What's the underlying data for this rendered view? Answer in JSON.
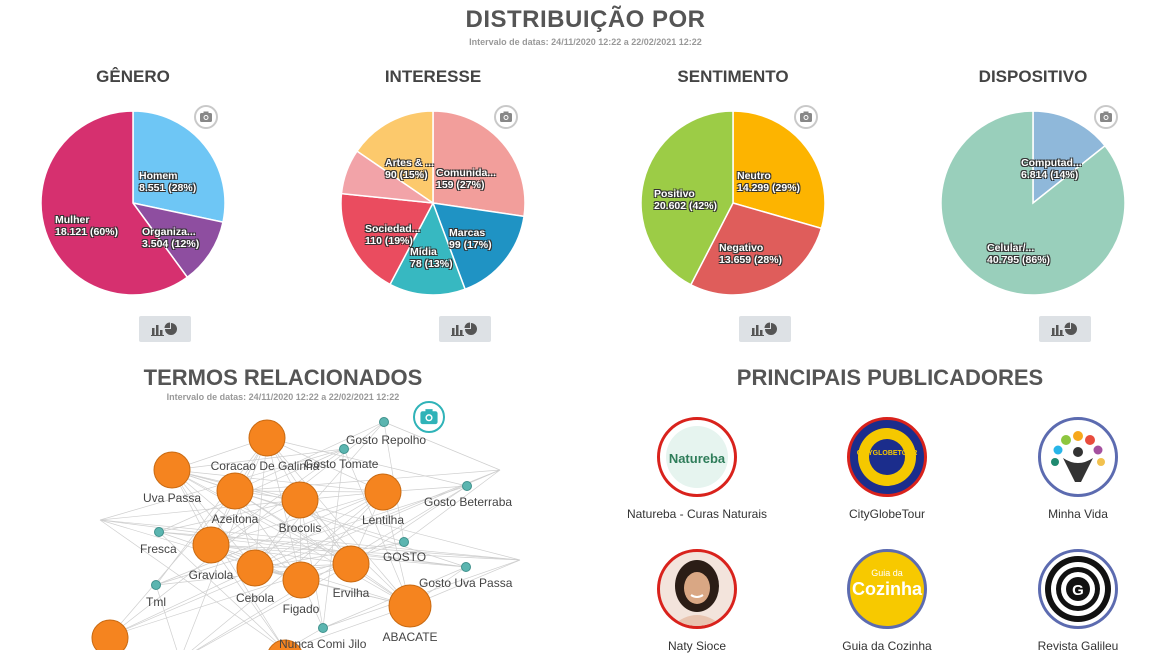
{
  "header": {
    "title": "DISTRIBUIÇÃO POR",
    "date_range": "Intervalo de datas: 24/11/2020 12:22 a 22/02/2021 12:22"
  },
  "charts": [
    {
      "title": "GÊNERO",
      "chart_data": {
        "type": "pie",
        "slices": [
          {
            "label": "Homem",
            "value_text": "8.551 (28%)",
            "value": 8551,
            "color": "#6ec6f5"
          },
          {
            "label": "Organiza...",
            "value_text": "3.504 (12%)",
            "value": 3504,
            "color": "#8e4ea0"
          },
          {
            "label": "Mulher",
            "value_text": "18.121 (60%)",
            "value": 18121,
            "color": "#d6306f"
          }
        ]
      }
    },
    {
      "title": "INTERESSE",
      "chart_data": {
        "type": "pie",
        "slices": [
          {
            "label": "Comunida...",
            "value_text": "159 (27%)",
            "value": 159,
            "color": "#f29e9b"
          },
          {
            "label": "Marcas",
            "value_text": "99 (17%)",
            "value": 99,
            "color": "#1f93c4"
          },
          {
            "label": "Mídia",
            "value_text": "78 (13%)",
            "value": 78,
            "color": "#37b8c1"
          },
          {
            "label": "Sociedad...",
            "value_text": "110 (19%)",
            "value": 110,
            "color": "#ea4c5f"
          },
          {
            "label": "",
            "value_text": "",
            "value": 46,
            "color": "#f2a3a8"
          },
          {
            "label": "Artes & ...",
            "value_text": "90 (15%)",
            "value": 90,
            "color": "#fcc96c"
          }
        ]
      }
    },
    {
      "title": "SENTIMENTO",
      "chart_data": {
        "type": "pie",
        "slices": [
          {
            "label": "Neutro",
            "value_text": "14.299 (29%)",
            "value": 14299,
            "color": "#fdb400"
          },
          {
            "label": "Negativo",
            "value_text": "13.659 (28%)",
            "value": 13659,
            "color": "#df5d5b"
          },
          {
            "label": "Positivo",
            "value_text": "20.602 (42%)",
            "value": 20602,
            "color": "#9ccc46"
          }
        ]
      }
    },
    {
      "title": "DISPOSITIVO",
      "chart_data": {
        "type": "pie",
        "slices": [
          {
            "label": "Computad...",
            "value_text": "6.814 (14%)",
            "value": 6814,
            "color": "#8fb8da"
          },
          {
            "label": "Celular/...",
            "value_text": "40.795 (86%)",
            "value": 40795,
            "color": "#99cfbb"
          }
        ]
      }
    }
  ],
  "terms": {
    "title": "TERMOS RELACIONADOS",
    "date_range": "Intervalo de datas: 24/11/2020 12:22 a 22/02/2021 12:22",
    "nodes": [
      {
        "label": "Coracao De Galinha",
        "kind": "big"
      },
      {
        "label": "Uva Passa",
        "kind": "big"
      },
      {
        "label": "Azeitona",
        "kind": "big"
      },
      {
        "label": "Brocolis",
        "kind": "big"
      },
      {
        "label": "Lentilha",
        "kind": "big"
      },
      {
        "label": "Graviola",
        "kind": "big"
      },
      {
        "label": "Cebola",
        "kind": "big"
      },
      {
        "label": "Figado",
        "kind": "big"
      },
      {
        "label": "Ervilha",
        "kind": "big"
      },
      {
        "label": "ABACATE",
        "kind": "big"
      },
      {
        "label": "Gosto Repolho",
        "kind": "small"
      },
      {
        "label": "Gosto Tomate",
        "kind": "small"
      },
      {
        "label": "Gosto Beterraba",
        "kind": "small"
      },
      {
        "label": "Fresca",
        "kind": "small"
      },
      {
        "label": "GOSTO",
        "kind": "small"
      },
      {
        "label": "Gosto Uva Passa",
        "kind": "small"
      },
      {
        "label": "Tml",
        "kind": "small"
      },
      {
        "label": "Nunca Comi Jilo",
        "kind": "small"
      }
    ]
  },
  "publishers": {
    "title": "PRINCIPAIS PUBLICADORES",
    "items": [
      {
        "name": "Natureba - Curas Naturais",
        "logo_text": "Natureba",
        "ring": "#d9221c"
      },
      {
        "name": "CityGlobeTour",
        "logo_text": "CITYGLOBETOUR",
        "ring": "#d9221c"
      },
      {
        "name": "Minha Vida",
        "logo_text": "",
        "ring": "#5c6bb0"
      },
      {
        "name": "Naty Sioce",
        "logo_text": "",
        "ring": "#d9221c"
      },
      {
        "name": "Guia da Cozinha",
        "logo_text_small": "Guia da",
        "logo_text": "Cozinha",
        "ring": "#5c6bb0"
      },
      {
        "name": "Revista Galileu",
        "logo_text": "G",
        "ring": "#5c6bb0"
      }
    ]
  },
  "colors": {
    "node_orange": "#f5841f",
    "node_teal": "#5bb5b0",
    "camera_teal": "#2fb3b8"
  },
  "icons": {
    "camera": "camera-icon",
    "chart_toggle": "bar-pie-toggle-icon"
  }
}
